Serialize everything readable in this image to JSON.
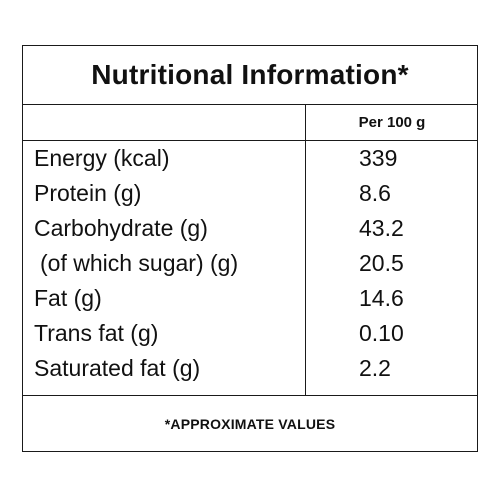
{
  "title": "Nutritional Information*",
  "column_header": "Per 100 g",
  "rows": [
    {
      "nutrient": "Energy (kcal)",
      "value": "339"
    },
    {
      "nutrient": "Protein (g)",
      "value": "8.6"
    },
    {
      "nutrient": "Carbohydrate (g)",
      "value": "43.2"
    },
    {
      "nutrient": "(of which sugar) (g)",
      "value": "20.5"
    },
    {
      "nutrient": "Fat (g)",
      "value": "14.6"
    },
    {
      "nutrient": "Trans fat (g)",
      "value": "0.10"
    },
    {
      "nutrient": "Saturated fat (g)",
      "value": "2.2"
    }
  ],
  "footnote": "*APPROXIMATE VALUES"
}
